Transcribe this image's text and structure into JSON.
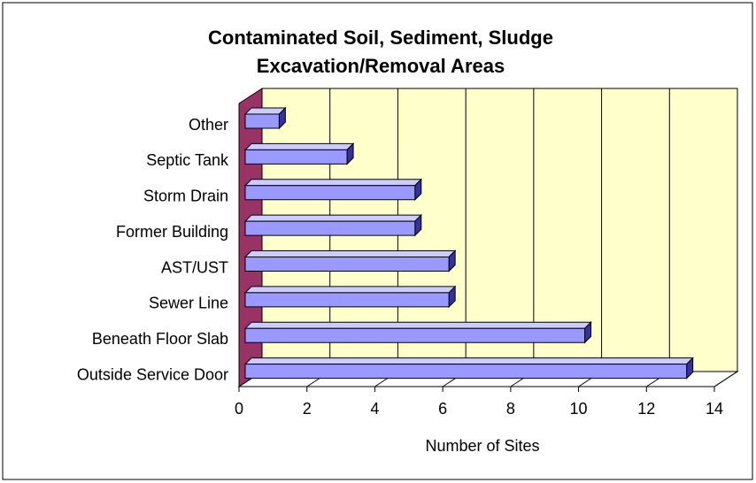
{
  "chart_data": {
    "type": "bar3d_horizontal",
    "title": [
      "Contaminated Soil, Sediment, Sludge",
      "Excavation/Removal Areas"
    ],
    "x_label": "Number of Sites",
    "categories": [
      "Other",
      "Septic Tank",
      "Storm Drain",
      "Former Building",
      "AST/UST",
      "Sewer Line",
      "Beneath Floor Slab",
      "Outside Service Door"
    ],
    "values": [
      1,
      3,
      5,
      5,
      6,
      6,
      10,
      13
    ],
    "color": "#9999ff",
    "wall_color": "#ffffcc",
    "side_wall_color": "#993366",
    "xlim": [
      0,
      14
    ],
    "xticks": [
      0,
      2,
      4,
      6,
      8,
      10,
      12,
      14
    ],
    "grid": true
  }
}
